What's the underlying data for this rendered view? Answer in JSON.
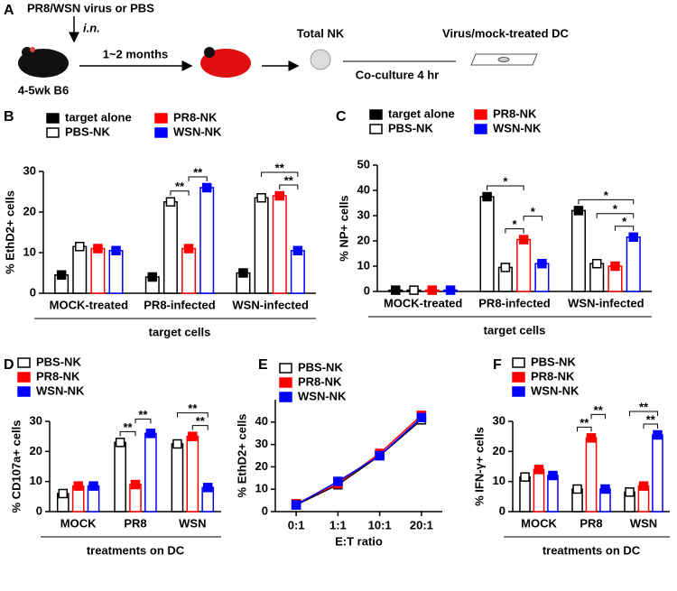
{
  "schematic": {
    "panel": "A",
    "inoculum": "PR8/WSN virus or PBS",
    "route": "i.n.",
    "duration": "1~2 months",
    "mouse": "4-5wk B6",
    "cells": "Total NK",
    "coculture": "Co-culture 4 hr",
    "target": "Virus/mock-treated DC"
  },
  "chart_data": [
    {
      "type": "bar",
      "panel": "B",
      "ylabel": "% EthD2+ cells",
      "xlabel": "target cells",
      "categories": [
        "MOCK-treated",
        "PR8-infected",
        "WSN-infected"
      ],
      "series": [
        {
          "name": "target alone",
          "color": "#000000",
          "marker": "filled",
          "values": [
            4.5,
            4,
            5
          ]
        },
        {
          "name": "PBS-NK",
          "color": "#000000",
          "marker": "open",
          "values": [
            11.5,
            22.5,
            23.5
          ]
        },
        {
          "name": "PR8-NK",
          "color": "#ff0000",
          "marker": "filled",
          "values": [
            11,
            11,
            24
          ]
        },
        {
          "name": "WSN-NK",
          "color": "#0000ff",
          "marker": "filled",
          "values": [
            10.5,
            26,
            10.5
          ]
        }
      ],
      "ylim": [
        0,
        30
      ],
      "yticks": [
        0,
        10,
        20,
        30
      ],
      "annotations": [
        {
          "text": "**",
          "category": 1,
          "series": [
            1,
            2
          ]
        },
        {
          "text": "**",
          "category": 1,
          "series": [
            2,
            3
          ]
        },
        {
          "text": "**",
          "category": 2,
          "series": [
            2,
            3
          ]
        },
        {
          "text": "**",
          "category": 2,
          "series": [
            1,
            3
          ]
        }
      ]
    },
    {
      "type": "bar",
      "panel": "C",
      "ylabel": "% NP+ cells",
      "xlabel": "target cells",
      "categories": [
        "MOCK-treated",
        "PR8-infected",
        "WSN-infected"
      ],
      "series": [
        {
          "name": "target alone",
          "color": "#000000",
          "marker": "filled",
          "values": [
            0.5,
            37.5,
            32
          ]
        },
        {
          "name": "PBS-NK",
          "color": "#000000",
          "marker": "open",
          "values": [
            0.5,
            9.5,
            11
          ]
        },
        {
          "name": "PR8-NK",
          "color": "#ff0000",
          "marker": "filled",
          "values": [
            0.5,
            20.5,
            10
          ]
        },
        {
          "name": "WSN-NK",
          "color": "#0000ff",
          "marker": "filled",
          "values": [
            0.5,
            11,
            21.5
          ]
        }
      ],
      "ylim": [
        0,
        50
      ],
      "yticks": [
        0,
        10,
        20,
        30,
        40,
        50
      ],
      "annotations": [
        {
          "text": "*",
          "category": 1,
          "series": [
            1,
            2
          ]
        },
        {
          "text": "*",
          "category": 1,
          "series": [
            2,
            3
          ]
        },
        {
          "text": "*",
          "category": 1,
          "series": [
            0,
            2
          ]
        },
        {
          "text": "*",
          "category": 2,
          "series": [
            2,
            3
          ]
        },
        {
          "text": "*",
          "category": 2,
          "series": [
            1,
            3
          ]
        },
        {
          "text": "*",
          "category": 2,
          "series": [
            0,
            3
          ]
        }
      ]
    },
    {
      "type": "bar",
      "panel": "D",
      "ylabel": "% CD107a+ cells",
      "xlabel": "treatments on DC",
      "categories": [
        "MOCK",
        "PR8",
        "WSN"
      ],
      "series": [
        {
          "name": "PBS-NK",
          "color": "#000000",
          "marker": "open",
          "values": [
            6,
            23,
            22.5
          ]
        },
        {
          "name": "PR8-NK",
          "color": "#ff0000",
          "marker": "filled",
          "values": [
            8.5,
            9,
            25
          ]
        },
        {
          "name": "WSN-NK",
          "color": "#0000ff",
          "marker": "filled",
          "values": [
            8.5,
            26,
            8
          ]
        }
      ],
      "ylim": [
        0,
        30
      ],
      "yticks": [
        0,
        10,
        20,
        30
      ],
      "annotations": [
        {
          "text": "**",
          "category": 1,
          "series": [
            0,
            1
          ]
        },
        {
          "text": "**",
          "category": 1,
          "series": [
            1,
            2
          ]
        },
        {
          "text": "**",
          "category": 2,
          "series": [
            1,
            2
          ]
        },
        {
          "text": "**",
          "category": 2,
          "series": [
            0,
            2
          ]
        }
      ]
    },
    {
      "type": "line",
      "panel": "E",
      "ylabel": "% EthD2+ cells",
      "xlabel": "E:T ratio",
      "categories": [
        "0:1",
        "1:1",
        "10:1",
        "20:1"
      ],
      "series": [
        {
          "name": "PBS-NK",
          "color": "#000000",
          "marker": "open",
          "values": [
            3,
            12,
            25,
            41
          ]
        },
        {
          "name": "PR8-NK",
          "color": "#ff0000",
          "marker": "filled",
          "values": [
            3.5,
            12.5,
            26,
            43
          ]
        },
        {
          "name": "WSN-NK",
          "color": "#0000ff",
          "marker": "filled",
          "values": [
            3,
            13.5,
            25,
            42
          ]
        }
      ],
      "ylim": [
        0,
        50
      ],
      "yticks": [
        0,
        10,
        20,
        30,
        40
      ]
    },
    {
      "type": "bar",
      "panel": "F",
      "ylabel": "% IFN-γ+ cells",
      "xlabel": "treatments on DC",
      "categories": [
        "MOCK",
        "PR8",
        "WSN"
      ],
      "series": [
        {
          "name": "PBS-NK",
          "color": "#000000",
          "marker": "open",
          "values": [
            11.5,
            7.5,
            6.5
          ]
        },
        {
          "name": "PR8-NK",
          "color": "#ff0000",
          "marker": "filled",
          "values": [
            14,
            24.5,
            8.5
          ]
        },
        {
          "name": "WSN-NK",
          "color": "#0000ff",
          "marker": "filled",
          "values": [
            12,
            7.5,
            25.5
          ]
        }
      ],
      "ylim": [
        0,
        30
      ],
      "yticks": [
        0,
        10,
        20,
        30
      ],
      "annotations": [
        {
          "text": "**",
          "category": 1,
          "series": [
            0,
            1
          ]
        },
        {
          "text": "**",
          "category": 1,
          "series": [
            1,
            2
          ]
        },
        {
          "text": "**",
          "category": 2,
          "series": [
            1,
            2
          ]
        },
        {
          "text": "**",
          "category": 2,
          "series": [
            0,
            2
          ]
        }
      ]
    }
  ]
}
